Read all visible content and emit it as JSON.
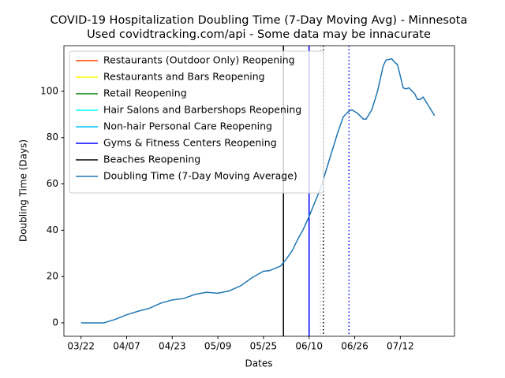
{
  "chart_data": {
    "type": "line",
    "title": "COVID-19 Hospitalization Doubling Time (7-Day Moving Avg) - Minnesota",
    "subtitle": "Used covidtracking.com/api - Some data may be innacurate",
    "x_label": "Dates",
    "y_label": "Doubling Time (Days)",
    "x": [
      "03/22",
      "03/30",
      "04/03",
      "04/07",
      "04/11",
      "04/15",
      "04/19",
      "04/23",
      "04/27",
      "05/01",
      "05/05",
      "05/09",
      "05/13",
      "05/17",
      "05/21",
      "05/25",
      "05/27",
      "05/29",
      "05/31",
      "06/02",
      "06/04",
      "06/06",
      "06/08",
      "06/10",
      "06/12",
      "06/14",
      "06/16",
      "06/18",
      "06/20",
      "06/22",
      "06/24",
      "06/25",
      "06/27",
      "06/29",
      "06/30",
      "07/02",
      "07/04",
      "07/06",
      "07/07",
      "07/09",
      "07/10",
      "07/11",
      "07/13",
      "07/14",
      "07/15",
      "07/17",
      "07/18",
      "07/19",
      "07/20",
      "07/21",
      "07/23",
      "07/24"
    ],
    "series": [
      {
        "name": "Doubling Time (7-Day Moving Average)",
        "color": "#1f77b4",
        "values": [
          0,
          0,
          1.5,
          3.5,
          5,
          6.3,
          8.5,
          9.9,
          10.5,
          12.3,
          13.2,
          12.8,
          13.8,
          16,
          19.5,
          22.3,
          22.5,
          23.5,
          24.5,
          27.5,
          31,
          36,
          40.5,
          46,
          52,
          58,
          66,
          74,
          82,
          89,
          91.5,
          92,
          90.5,
          88,
          88,
          92,
          100,
          111,
          113.5,
          114,
          112.5,
          111.5,
          101.5,
          101,
          101.5,
          99,
          96.5,
          96.5,
          97.5,
          95.5,
          91.5,
          89.5
        ]
      }
    ],
    "reopenings": [
      {
        "name": "Restaurants (Outdoor Only) Reopening",
        "color": "#ff4500"
      },
      {
        "name": "Restaurants and Bars Reopening",
        "color": "#ffff00"
      },
      {
        "name": "Retail Reopening",
        "color": "#008000"
      },
      {
        "name": "Hair Salons and Barbershops Reopening",
        "color": "#00ffff"
      },
      {
        "name": "Non-hair Personal Care Reopening",
        "color": "#00bfff"
      },
      {
        "name": "Gyms & Fitness Centers Reopening",
        "color": "#0000ff"
      },
      {
        "name": "Beaches Reopening",
        "color": "#000000"
      }
    ],
    "vlines": [
      {
        "x": "06/01",
        "color": "#000000",
        "dashed": false
      },
      {
        "x": "06/10",
        "color": "#0000ff",
        "dashed": false
      },
      {
        "x": "06/14",
        "color": "#cccccc",
        "dashed": true
      },
      {
        "x": "06/15",
        "color": "#000000",
        "dashed": true
      },
      {
        "x": "06/24",
        "color": "#0000ff",
        "dashed": true
      }
    ],
    "xlim": [
      "03/16",
      "07/31"
    ],
    "xticks": [
      "03/22",
      "04/07",
      "04/23",
      "05/09",
      "05/25",
      "06/10",
      "06/26",
      "07/12"
    ],
    "ylim": [
      -5.8,
      119.7
    ],
    "yticks": [
      0,
      20,
      40,
      60,
      80,
      100
    ],
    "grid": false
  }
}
